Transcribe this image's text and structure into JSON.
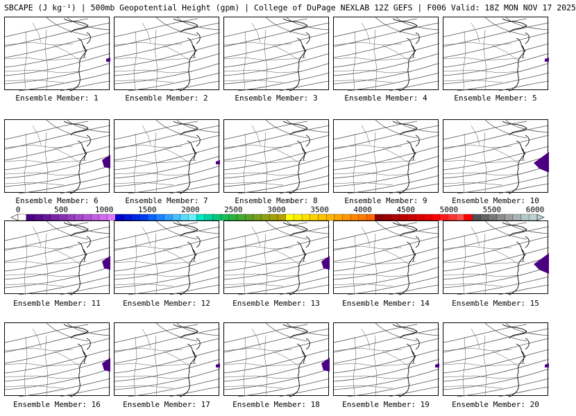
{
  "title": "SBCAPE (J kg⁻¹) | 500mb Geopotential Height (gpm) | College of DuPage NEXLAB 12Z GEFS | F006 Valid: 18Z MON NOV 17 2025",
  "colorbar": {
    "ticks": [
      "0",
      "500",
      "1000",
      "1500",
      "2000",
      "2500",
      "3000",
      "3500",
      "4000",
      "4500",
      "5000",
      "5500",
      "6000"
    ],
    "colors": [
      "#ffffff",
      "#4b0082",
      "#5a0c8e",
      "#69189a",
      "#7824a6",
      "#8730b2",
      "#963cbe",
      "#a548ca",
      "#b454d6",
      "#c360e2",
      "#d26cee",
      "#e178fa",
      "#0000c8",
      "#0014d6",
      "#0028e4",
      "#003cf2",
      "#0a64ff",
      "#1e82ff",
      "#32a0ff",
      "#46beff",
      "#5adcff",
      "#6ef0ff",
      "#00e6c8",
      "#00d2a0",
      "#00c878",
      "#14be5a",
      "#28b43c",
      "#46aa32",
      "#5aa028",
      "#78a01e",
      "#8ca014",
      "#a0a00a",
      "#b4a000",
      "#ffff00",
      "#fff000",
      "#ffe100",
      "#ffd200",
      "#ffc300",
      "#ffb400",
      "#ffa500",
      "#ff9600",
      "#ff8700",
      "#ff7800",
      "#ff6900",
      "#8b0000",
      "#9b0000",
      "#ab0000",
      "#bb0000",
      "#cb0000",
      "#db0000",
      "#eb0000",
      "#ff0000",
      "#ff1a1a",
      "#ff3333",
      "#ff4d4d",
      "#ff0000",
      "#505050",
      "#646464",
      "#787878",
      "#8c8c8c",
      "#a0a0a0",
      "#aab4b4",
      "#b4c8c8",
      "#bed2d2"
    ]
  },
  "members": [
    {
      "label": "Ensemble Member: 1",
      "cape": "small"
    },
    {
      "label": "Ensemble Member: 2",
      "cape": "none"
    },
    {
      "label": "Ensemble Member: 3",
      "cape": "none"
    },
    {
      "label": "Ensemble Member: 4",
      "cape": "none"
    },
    {
      "label": "Ensemble Member: 5",
      "cape": "small"
    },
    {
      "label": "Ensemble Member: 6",
      "cape": "medium"
    },
    {
      "label": "Ensemble Member: 7",
      "cape": "small"
    },
    {
      "label": "Ensemble Member: 8",
      "cape": "none"
    },
    {
      "label": "Ensemble Member: 9",
      "cape": "none"
    },
    {
      "label": "Ensemble Member: 10",
      "cape": "large"
    },
    {
      "label": "Ensemble Member: 11",
      "cape": "medium"
    },
    {
      "label": "Ensemble Member: 12",
      "cape": "none"
    },
    {
      "label": "Ensemble Member: 13",
      "cape": "medium"
    },
    {
      "label": "Ensemble Member: 14",
      "cape": "none"
    },
    {
      "label": "Ensemble Member: 15",
      "cape": "large"
    },
    {
      "label": "Ensemble Member: 16",
      "cape": "medium"
    },
    {
      "label": "Ensemble Member: 17",
      "cape": "small"
    },
    {
      "label": "Ensemble Member: 18",
      "cape": "medium"
    },
    {
      "label": "Ensemble Member: 19",
      "cape": "small"
    },
    {
      "label": "Ensemble Member: 20",
      "cape": "small"
    }
  ],
  "colors": {
    "cape": "#4b0082",
    "contour": "#505050",
    "state": "#505050",
    "coast": "#000000"
  }
}
